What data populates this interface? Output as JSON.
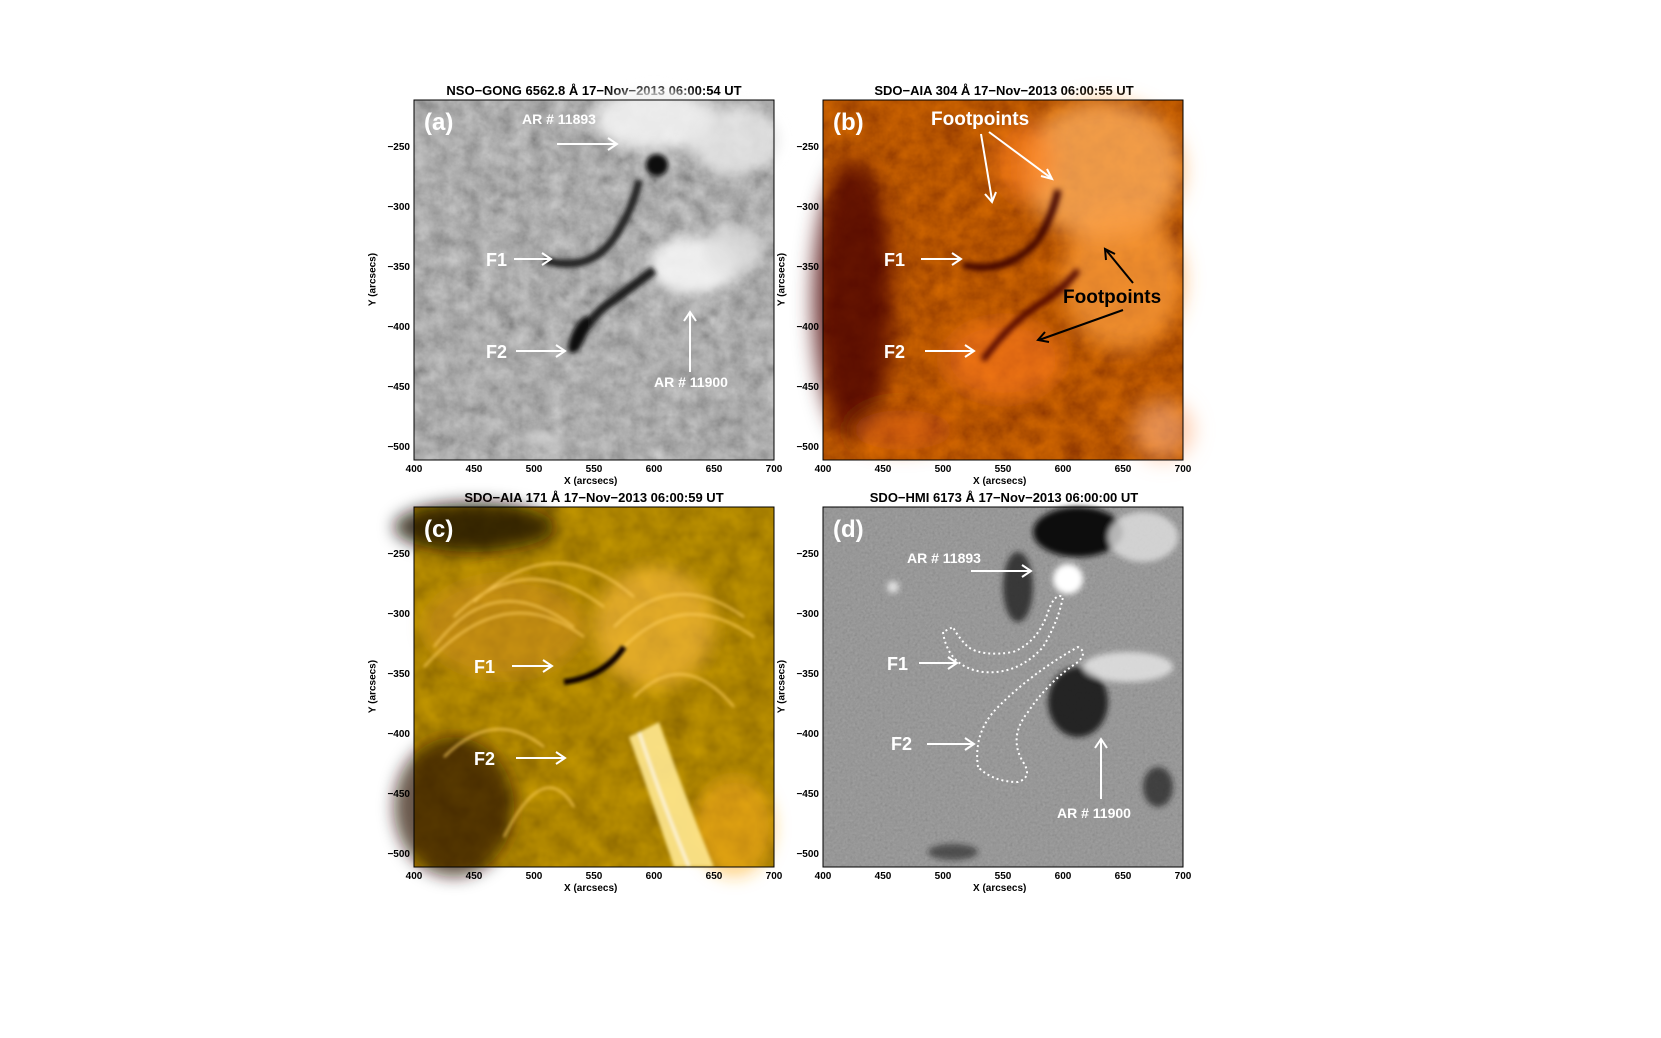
{
  "panels": [
    {
      "id": "a",
      "title": "NSO−GONG 6562.8 Å 17−Nov−2013 06:00:54 UT",
      "label": "(a)",
      "annotations": [
        "AR # 11893",
        "F1",
        "F2",
        "AR # 11900"
      ],
      "colormap": "grayscale"
    },
    {
      "id": "b",
      "title": "SDO−AIA 304 Å 17−Nov−2013 06:00:55 UT",
      "label": "(b)",
      "annotations": [
        "Footpoints",
        "F1",
        "Footpoints",
        "F2"
      ],
      "colormap": "red"
    },
    {
      "id": "c",
      "title": "SDO−AIA 171 Å 17−Nov−2013 06:00:59 UT",
      "label": "(c)",
      "annotations": [
        "F1",
        "F2"
      ],
      "colormap": "gold"
    },
    {
      "id": "d",
      "title": "SDO−HMI 6173 Å 17−Nov−2013 06:00:00 UT",
      "label": "(d)",
      "annotations": [
        "AR # 11893",
        "F1",
        "F2",
        "AR # 11900"
      ],
      "colormap": "magnetogram"
    }
  ],
  "axes": {
    "xlabel": "X (arcsecs)",
    "ylabel": "Y (arcsecs)",
    "xticks": [
      "400",
      "450",
      "500",
      "550",
      "600",
      "650",
      "700"
    ],
    "yticks": [
      "−250",
      "−300",
      "−350",
      "−400",
      "−450",
      "−500"
    ]
  }
}
